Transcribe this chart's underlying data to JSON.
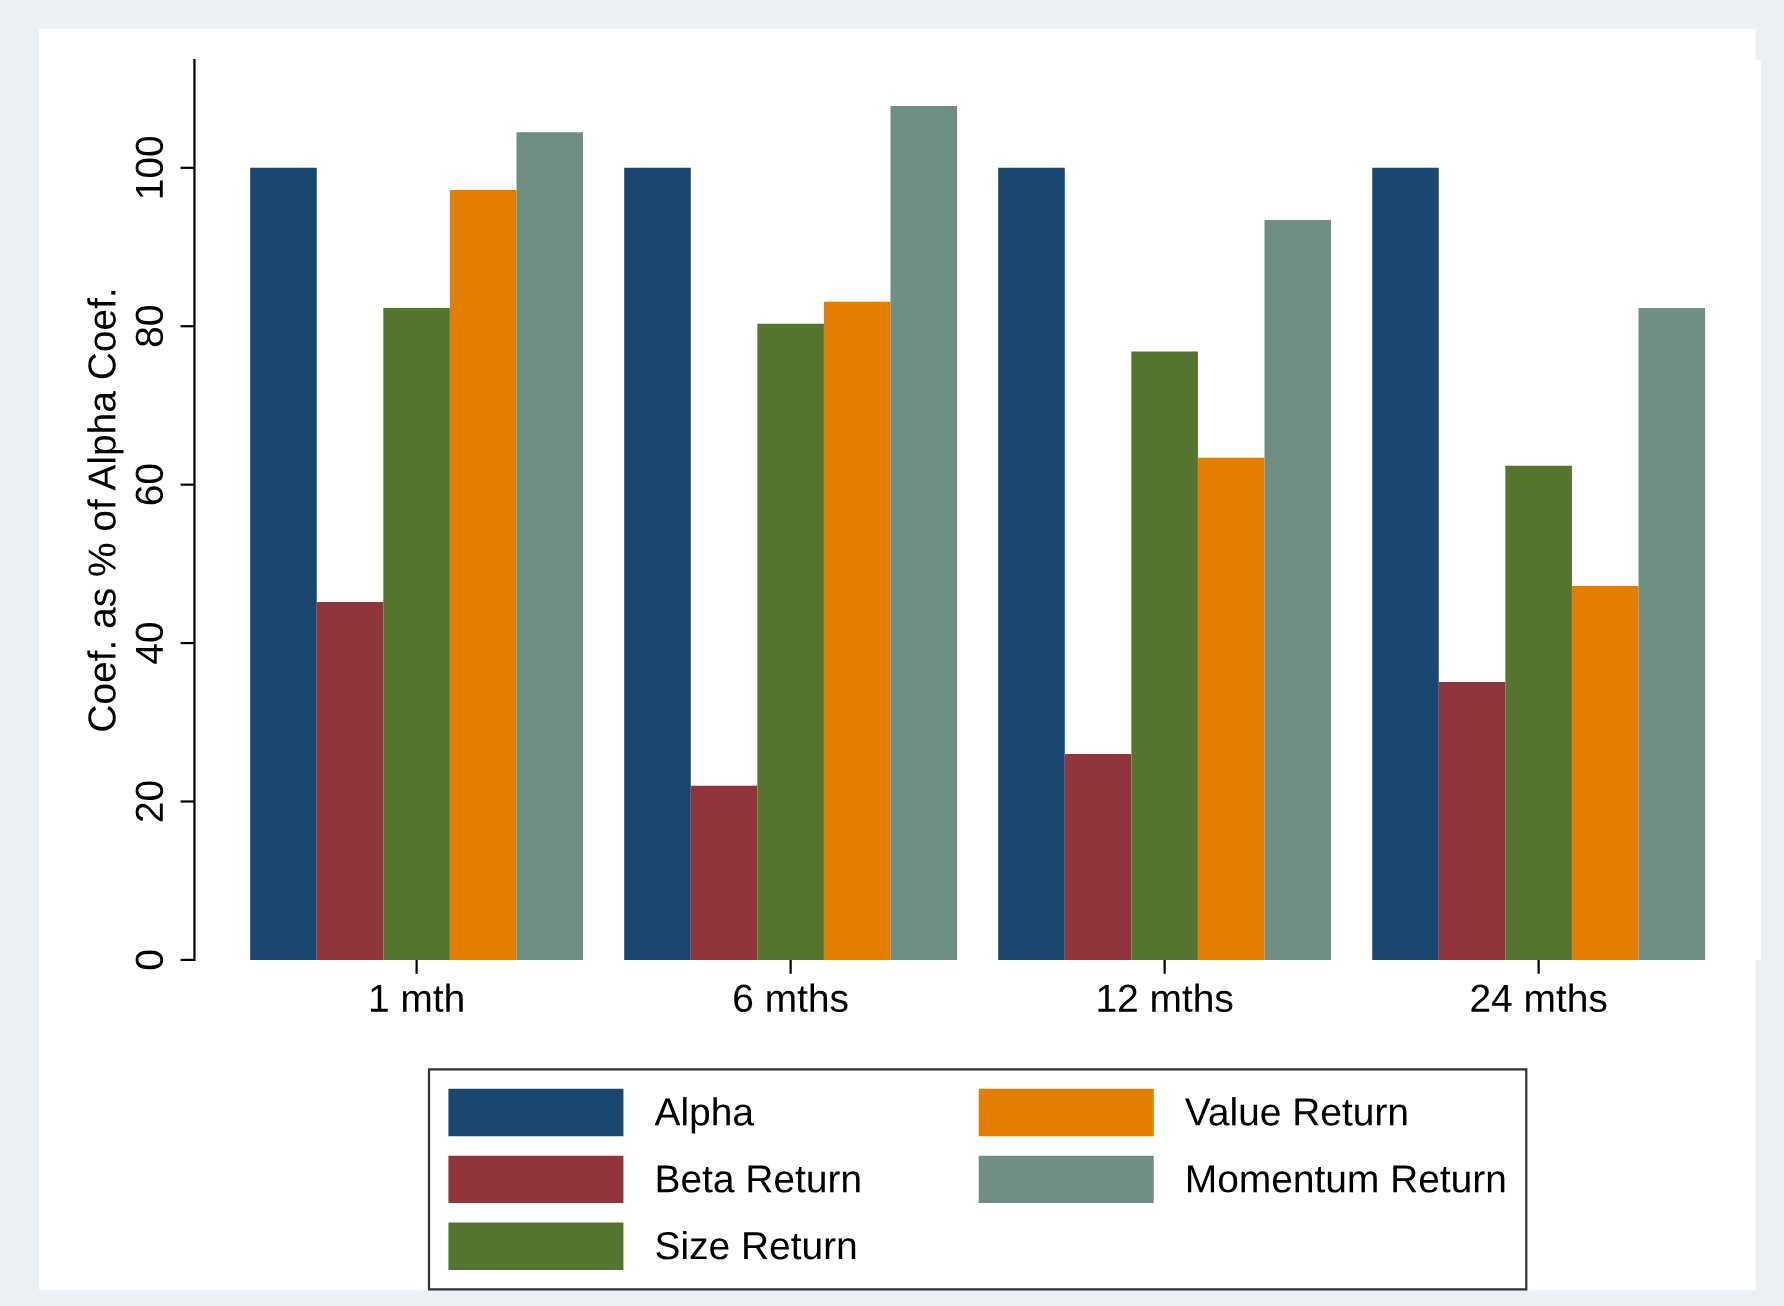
{
  "chart_data": {
    "type": "bar",
    "ylabel": "Coef. as % of Alpha Coef.",
    "categories": [
      "1 mth",
      "6 mths",
      "12 mths",
      "24 mths"
    ],
    "series": [
      {
        "name": "Alpha",
        "color": "#1a476f",
        "values": [
          100,
          100,
          100,
          100
        ]
      },
      {
        "name": "Beta Return",
        "color": "#90353b",
        "values": [
          45.2,
          22,
          26,
          35.1
        ]
      },
      {
        "name": "Size Return",
        "color": "#55752f",
        "values": [
          82.3,
          80.3,
          76.8,
          62.4
        ]
      },
      {
        "name": "Value Return",
        "color": "#e37e00",
        "values": [
          97.2,
          83.1,
          63.4,
          47.2
        ]
      },
      {
        "name": "Momentum Return",
        "color": "#6e8e84",
        "values": [
          104.5,
          107.8,
          93.4,
          82.3
        ]
      }
    ],
    "ylim": [
      0,
      113.6
    ],
    "yticks": [
      0,
      20,
      40,
      60,
      80,
      100
    ],
    "grid": false,
    "legend": "bottom"
  }
}
